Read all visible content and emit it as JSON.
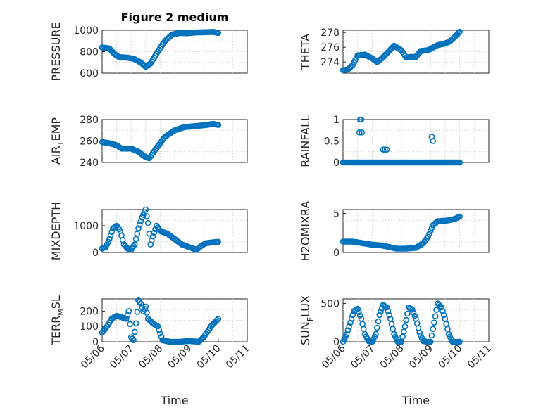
{
  "figure_title": "Figure 2 medium",
  "colors": {
    "marker": "#0072BD",
    "axes": "#262626",
    "grid": "#d4d4d4",
    "background": "#ffffff"
  },
  "chart_data": [
    {
      "id": "pressure",
      "type": "scatter",
      "marker": "circle",
      "title": "Figure 2 medium",
      "ylabel": "PRESSURE",
      "ylabel_sub": "",
      "xlabel": "",
      "x_type": "date",
      "xlim": [
        "05/06",
        "05/11"
      ],
      "x_ticks": [],
      "ylim": [
        600,
        1000
      ],
      "y_ticks": [
        600,
        800,
        1000
      ],
      "y_ticklabels": [
        "600",
        "800",
        "1000"
      ],
      "grid": true,
      "curve": [
        [
          "05/06 00:00",
          840
        ],
        [
          "05/06 06:00",
          830
        ],
        [
          "05/06 10:00",
          780
        ],
        [
          "05/06 14:00",
          750
        ],
        [
          "05/06 20:00",
          745
        ],
        [
          "05/07 02:00",
          735
        ],
        [
          "05/07 08:00",
          700
        ],
        [
          "05/07 12:00",
          660
        ],
        [
          "05/07 16:00",
          690
        ],
        [
          "05/07 22:00",
          800
        ],
        [
          "05/08 04:00",
          900
        ],
        [
          "05/08 10:00",
          960
        ],
        [
          "05/08 16:00",
          975
        ],
        [
          "05/08 22:00",
          972
        ],
        [
          "05/09 06:00",
          980
        ],
        [
          "05/09 14:00",
          982
        ],
        [
          "05/09 20:00",
          985
        ],
        [
          "05/10 00:00",
          975
        ]
      ]
    },
    {
      "id": "theta",
      "type": "scatter",
      "marker": "circle",
      "ylabel": "THETA",
      "ylabel_sub": "",
      "xlabel": "",
      "x_type": "date",
      "xlim": [
        "05/06",
        "05/11"
      ],
      "x_ticks": [],
      "ylim": [
        272.5,
        278.3
      ],
      "y_ticks": [
        274,
        276,
        278
      ],
      "y_ticklabels": [
        "274",
        "276",
        "278"
      ],
      "grid": true,
      "curve": [
        [
          "05/06 00:00",
          272.9
        ],
        [
          "05/06 04:00",
          273.0
        ],
        [
          "05/06 08:00",
          273.6
        ],
        [
          "05/06 12:00",
          274.9
        ],
        [
          "05/06 18:00",
          275.0
        ],
        [
          "05/07 00:00",
          274.5
        ],
        [
          "05/07 04:00",
          274.0
        ],
        [
          "05/07 08:00",
          274.5
        ],
        [
          "05/07 14:00",
          275.5
        ],
        [
          "05/07 18:00",
          276.2
        ],
        [
          "05/08 00:00",
          275.6
        ],
        [
          "05/08 04:00",
          274.6
        ],
        [
          "05/08 08:00",
          274.7
        ],
        [
          "05/08 12:00",
          274.7
        ],
        [
          "05/08 16:00",
          275.5
        ],
        [
          "05/08 22:00",
          275.6
        ],
        [
          "05/09 06:00",
          276.3
        ],
        [
          "05/09 12:00",
          276.5
        ],
        [
          "05/09 16:00",
          276.8
        ],
        [
          "05/09 20:00",
          277.4
        ],
        [
          "05/10 00:00",
          278.1
        ]
      ]
    },
    {
      "id": "air_temp",
      "type": "scatter",
      "marker": "circle",
      "ylabel": "AIR",
      "ylabel_sub": "T",
      "ylabel_rest": "EMP",
      "xlabel": "",
      "x_type": "date",
      "xlim": [
        "05/06",
        "05/11"
      ],
      "x_ticks": [],
      "ylim": [
        240,
        280
      ],
      "y_ticks": [
        240,
        260,
        280
      ],
      "y_ticklabels": [
        "240",
        "260",
        "280"
      ],
      "grid": true,
      "curve": [
        [
          "05/06 00:00",
          259
        ],
        [
          "05/06 06:00",
          258
        ],
        [
          "05/06 12:00",
          256
        ],
        [
          "05/06 16:00",
          253
        ],
        [
          "05/07 00:00",
          253
        ],
        [
          "05/07 06:00",
          250
        ],
        [
          "05/07 12:00",
          245
        ],
        [
          "05/07 15:00",
          244
        ],
        [
          "05/07 20:00",
          252
        ],
        [
          "05/08 04:00",
          264
        ],
        [
          "05/08 12:00",
          270
        ],
        [
          "05/08 20:00",
          273
        ],
        [
          "05/09 06:00",
          274
        ],
        [
          "05/09 14:00",
          275
        ],
        [
          "05/09 20:00",
          276
        ],
        [
          "05/10 00:00",
          275
        ]
      ]
    },
    {
      "id": "rainfall",
      "type": "scatter",
      "marker": "circle",
      "ylabel": "RAINFALL",
      "ylabel_sub": "",
      "xlabel": "",
      "x_type": "date",
      "xlim": [
        "05/06",
        "05/11"
      ],
      "x_ticks": [],
      "ylim": [
        0,
        1
      ],
      "y_ticks": [
        0,
        0.5,
        1
      ],
      "y_ticklabels": [
        "0",
        "0.5",
        "1"
      ],
      "grid": true,
      "baseline_from": "05/06 00:00",
      "baseline_to": "05/10 00:00",
      "baseline_value": 0,
      "points": [
        [
          "05/06 14:00",
          1.0
        ],
        [
          "05/06 15:00",
          1.0
        ],
        [
          "05/06 13:30",
          0.7
        ],
        [
          "05/06 15:30",
          0.7
        ],
        [
          "05/07 09:00",
          0.3
        ],
        [
          "05/07 10:30",
          0.3
        ],
        [
          "05/07 12:00",
          0.3
        ],
        [
          "05/09 01:00",
          0.6
        ],
        [
          "05/09 02:00",
          0.5
        ]
      ]
    },
    {
      "id": "mixdepth",
      "type": "scatter",
      "marker": "circle",
      "ylabel": "MIXDEPTH",
      "ylabel_sub": "",
      "xlabel": "",
      "x_type": "date",
      "xlim": [
        "05/06",
        "05/11"
      ],
      "x_ticks": [],
      "ylim": [
        0,
        1600
      ],
      "y_ticks": [
        0,
        1000
      ],
      "y_ticklabels": [
        "0",
        "1000"
      ],
      "grid": true,
      "curve": [
        [
          "05/06 00:00",
          150
        ],
        [
          "05/06 03:00",
          200
        ],
        [
          "05/06 06:00",
          500
        ],
        [
          "05/06 09:00",
          900
        ],
        [
          "05/06 12:00",
          1000
        ],
        [
          "05/06 15:00",
          800
        ],
        [
          "05/06 18:00",
          300
        ],
        [
          "05/06 21:00",
          150
        ],
        [
          "05/07 00:00",
          100
        ],
        [
          "05/07 03:00",
          300
        ],
        [
          "05/07 06:00",
          900
        ],
        [
          "05/07 09:00",
          1300
        ],
        [
          "05/07 12:00",
          1600
        ],
        [
          "05/07 14:00",
          1100
        ],
        [
          "05/07 16:00",
          300
        ],
        [
          "05/07 18:00",
          600
        ],
        [
          "05/07 21:00",
          1000
        ],
        [
          "05/08 00:00",
          800
        ],
        [
          "05/08 06:00",
          700
        ],
        [
          "05/08 12:00",
          500
        ],
        [
          "05/08 18:00",
          300
        ],
        [
          "05/09 00:00",
          200
        ],
        [
          "05/09 06:00",
          100
        ],
        [
          "05/09 10:00",
          250
        ],
        [
          "05/09 14:00",
          350
        ],
        [
          "05/10 00:00",
          400
        ]
      ]
    },
    {
      "id": "h2omixra",
      "type": "scatter",
      "marker": "circle",
      "ylabel": "H2OMIXRA",
      "ylabel_sub": "",
      "xlabel": "",
      "x_type": "date",
      "xlim": [
        "05/06",
        "05/11"
      ],
      "x_ticks": [],
      "ylim": [
        0,
        5.5
      ],
      "y_ticks": [
        0,
        5
      ],
      "y_ticklabels": [
        "0",
        "5"
      ],
      "grid": true,
      "curve": [
        [
          "05/06 00:00",
          1.4
        ],
        [
          "05/06 08:00",
          1.4
        ],
        [
          "05/06 16:00",
          1.2
        ],
        [
          "05/07 00:00",
          1.0
        ],
        [
          "05/07 08:00",
          0.9
        ],
        [
          "05/07 14:00",
          0.7
        ],
        [
          "05/07 20:00",
          0.5
        ],
        [
          "05/08 04:00",
          0.5
        ],
        [
          "05/08 12:00",
          0.6
        ],
        [
          "05/08 18:00",
          1.2
        ],
        [
          "05/08 22:00",
          2.0
        ],
        [
          "05/09 02:00",
          3.5
        ],
        [
          "05/09 06:00",
          4.0
        ],
        [
          "05/09 14:00",
          4.1
        ],
        [
          "05/09 20:00",
          4.3
        ],
        [
          "05/10 00:00",
          4.6
        ]
      ]
    },
    {
      "id": "terr_msl",
      "type": "scatter",
      "marker": "circle",
      "ylabel": "TERR",
      "ylabel_sub": "M",
      "ylabel_rest": "SL",
      "xlabel": "Time",
      "x_type": "date",
      "xlim": [
        "05/06",
        "05/11"
      ],
      "x_ticks": [
        "05/06",
        "05/07",
        "05/08",
        "05/09",
        "05/10",
        "05/11"
      ],
      "ylim": [
        0,
        280
      ],
      "y_ticks": [
        0,
        100,
        200
      ],
      "y_ticklabels": [
        "0",
        "100",
        "200"
      ],
      "grid": true,
      "curve": [
        [
          "05/06 00:00",
          60
        ],
        [
          "05/06 04:00",
          100
        ],
        [
          "05/06 08:00",
          150
        ],
        [
          "05/06 12:00",
          170
        ],
        [
          "05/06 16:00",
          160
        ],
        [
          "05/06 20:00",
          150
        ],
        [
          "05/06 22:00",
          200
        ],
        [
          "05/07 00:00",
          30
        ],
        [
          "05/07 02:00",
          10
        ],
        [
          "05/07 04:00",
          120
        ],
        [
          "05/07 06:00",
          270
        ],
        [
          "05/07 08:00",
          250
        ],
        [
          "05/07 10:00",
          200
        ],
        [
          "05/07 12:00",
          230
        ],
        [
          "05/07 14:00",
          150
        ],
        [
          "05/07 18:00",
          120
        ],
        [
          "05/07 22:00",
          100
        ],
        [
          "05/08 02:00",
          10
        ],
        [
          "05/08 08:00",
          0
        ],
        [
          "05/08 16:00",
          0
        ],
        [
          "05/09 00:00",
          5
        ],
        [
          "05/09 08:00",
          0
        ],
        [
          "05/09 12:00",
          30
        ],
        [
          "05/09 18:00",
          100
        ],
        [
          "05/10 00:00",
          150
        ]
      ]
    },
    {
      "id": "sun_flux",
      "type": "scatter",
      "marker": "circle",
      "ylabel": "SUN",
      "ylabel_sub": "F",
      "ylabel_rest": "LUX",
      "xlabel": "Time",
      "x_type": "date",
      "xlim": [
        "05/06",
        "05/11"
      ],
      "x_ticks": [
        "05/06",
        "05/07",
        "05/08",
        "05/09",
        "05/10",
        "05/11"
      ],
      "ylim": [
        0,
        560
      ],
      "y_ticks": [
        0,
        500
      ],
      "y_ticklabels": [
        "0",
        "500"
      ],
      "grid": true,
      "curve": [
        [
          "05/06 00:00",
          0
        ],
        [
          "05/06 03:00",
          100
        ],
        [
          "05/06 06:00",
          250
        ],
        [
          "05/06 09:00",
          400
        ],
        [
          "05/06 12:00",
          430
        ],
        [
          "05/06 15:00",
          300
        ],
        [
          "05/06 18:00",
          100
        ],
        [
          "05/06 21:00",
          10
        ],
        [
          "05/07 00:00",
          0
        ],
        [
          "05/07 03:00",
          100
        ],
        [
          "05/07 06:00",
          350
        ],
        [
          "05/07 09:00",
          480
        ],
        [
          "05/07 12:00",
          450
        ],
        [
          "05/07 15:00",
          300
        ],
        [
          "05/07 18:00",
          100
        ],
        [
          "05/07 21:00",
          0
        ],
        [
          "05/08 00:00",
          0
        ],
        [
          "05/08 03:00",
          200
        ],
        [
          "05/08 06:00",
          450
        ],
        [
          "05/08 09:00",
          420
        ],
        [
          "05/08 12:00",
          300
        ],
        [
          "05/08 15:00",
          120
        ],
        [
          "05/08 18:00",
          10
        ],
        [
          "05/08 21:00",
          0
        ],
        [
          "05/09 00:00",
          0
        ],
        [
          "05/09 03:00",
          250
        ],
        [
          "05/09 06:00",
          500
        ],
        [
          "05/09 09:00",
          450
        ],
        [
          "05/09 12:00",
          300
        ],
        [
          "05/09 15:00",
          100
        ],
        [
          "05/09 18:00",
          0
        ],
        [
          "05/10 00:00",
          0
        ]
      ]
    }
  ]
}
